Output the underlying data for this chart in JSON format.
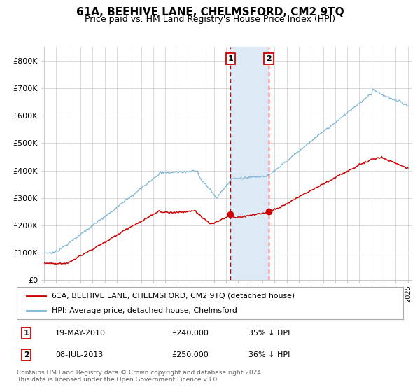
{
  "title": "61A, BEEHIVE LANE, CHELMSFORD, CM2 9TQ",
  "subtitle": "Price paid vs. HM Land Registry's House Price Index (HPI)",
  "title_fontsize": 11,
  "subtitle_fontsize": 9,
  "ylim": [
    0,
    850000
  ],
  "yticks": [
    0,
    100000,
    200000,
    300000,
    400000,
    500000,
    600000,
    700000,
    800000
  ],
  "hpi_color": "#7ab3d4",
  "price_color": "#cc0000",
  "marker_color": "#cc0000",
  "vline_color": "#cc0000",
  "shade_color": "#ddeaf5",
  "grid_color": "#cccccc",
  "legend_box_color": "#cc0000",
  "sale1_date_num": 2010.38,
  "sale2_date_num": 2013.52,
  "sale1_price": 240000,
  "sale2_price": 250000,
  "legend_entries": [
    "61A, BEEHIVE LANE, CHELMSFORD, CM2 9TQ (detached house)",
    "HPI: Average price, detached house, Chelmsford"
  ],
  "table_rows": [
    [
      "1",
      "19-MAY-2010",
      "£240,000",
      "35% ↓ HPI"
    ],
    [
      "2",
      "08-JUL-2013",
      "£250,000",
      "36% ↓ HPI"
    ]
  ],
  "footnote": "Contains HM Land Registry data © Crown copyright and database right 2024.\nThis data is licensed under the Open Government Licence v3.0.",
  "background_color": "#ffffff"
}
